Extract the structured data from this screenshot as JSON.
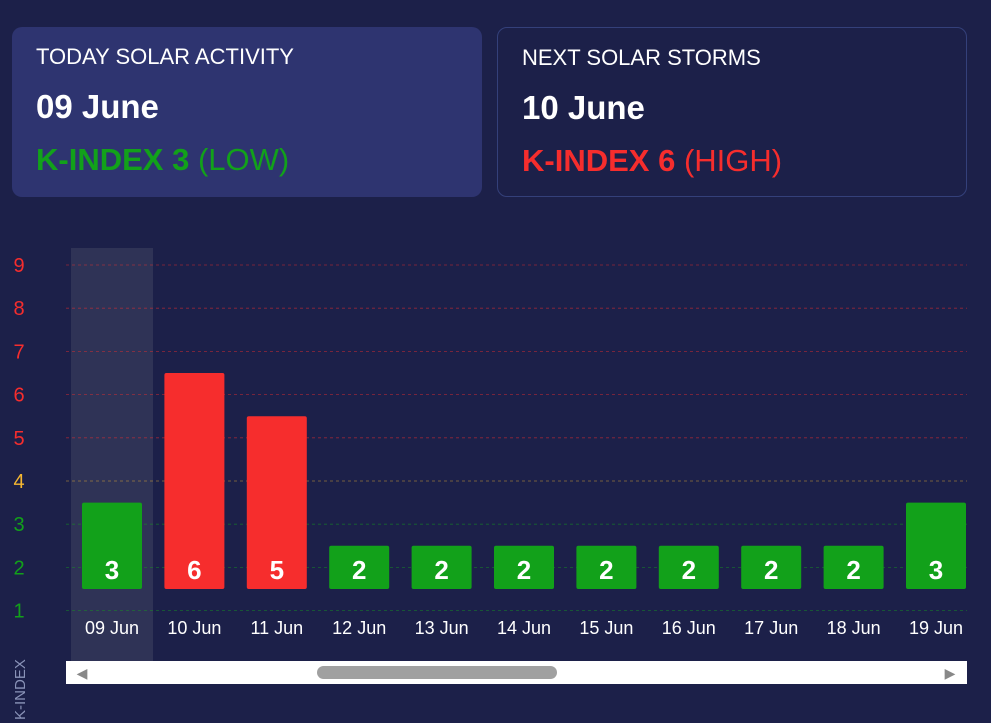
{
  "today": {
    "title": "TODAY SOLAR ACTIVITY",
    "date": "09 June",
    "kindex_text": "K-INDEX 3",
    "level_text": "(LOW)"
  },
  "next": {
    "title": "NEXT SOLAR STORMS",
    "date": "10 June",
    "kindex_text": "K-INDEX 6",
    "level_text": "(HIGH)"
  },
  "colors": {
    "low": "#12a11a",
    "medium": "#f5b731",
    "high": "#f62d2d",
    "highlight": "#2f3356",
    "background": "#1c2049"
  },
  "chart_data": {
    "type": "bar",
    "categories": [
      "09 Jun",
      "10 Jun",
      "11 Jun",
      "12 Jun",
      "13 Jun",
      "14 Jun",
      "15 Jun",
      "16 Jun",
      "17 Jun",
      "18 Jun",
      "19 Jun"
    ],
    "values": [
      3,
      6,
      5,
      2,
      2,
      2,
      2,
      2,
      2,
      2,
      3
    ],
    "ylabel": "K-INDEX",
    "yticks": [
      1,
      2,
      3,
      4,
      5,
      6,
      7,
      8,
      9
    ],
    "ylim": [
      1,
      9
    ],
    "highlighted_category": "09 Jun",
    "grid": true
  },
  "scrollbar": {
    "left_arrow": "◀",
    "right_arrow": "▶"
  }
}
